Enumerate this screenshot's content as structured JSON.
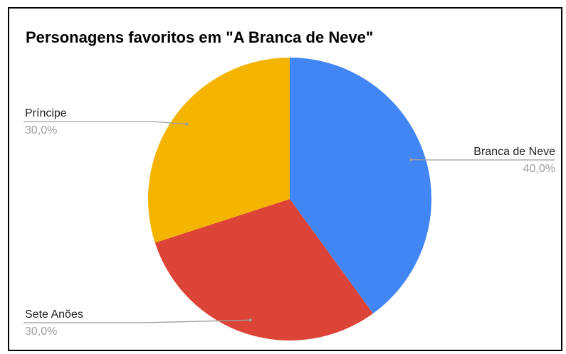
{
  "chart_data": {
    "type": "pie",
    "title": "Personagens favoritos em \"A Branca de Neve\"",
    "slices": [
      {
        "label": "Branca de Neve",
        "value": 40.0,
        "percent_label": "40,0%",
        "color": "#4285f4"
      },
      {
        "label": "Sete Anões",
        "value": 30.0,
        "percent_label": "30,0%",
        "color": "#db4437"
      },
      {
        "label": "Príncipe",
        "value": 30.0,
        "percent_label": "30,0%",
        "color": "#f4b400"
      }
    ],
    "start_angle_deg": 0,
    "direction": "clockwise",
    "label_style": "outside-with-leader-lines"
  }
}
